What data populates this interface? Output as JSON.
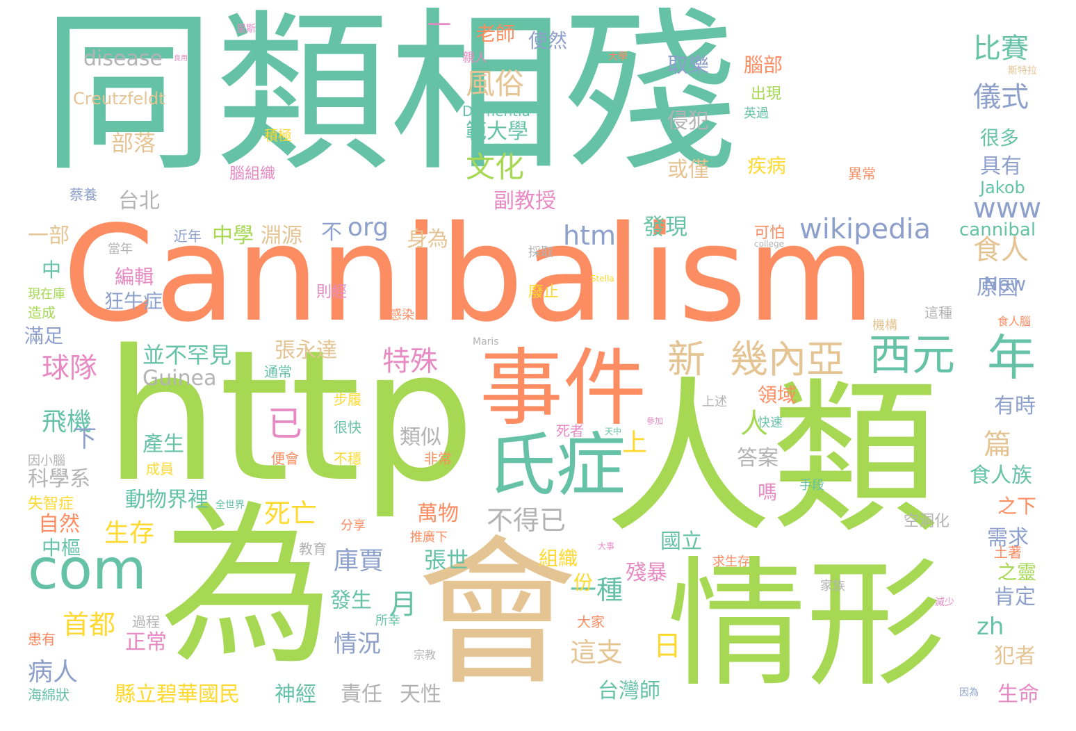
{
  "colors": {
    "teal": "#66c2a5",
    "orange": "#fc8d62",
    "slate": "#8da0cb",
    "pink": "#e78ac3",
    "green": "#a6d854",
    "yellow": "#ffd92f",
    "tan": "#e5c494",
    "gray": "#b3b3b3"
  },
  "words": [
    {
      "text": "同類相殘",
      "color": "teal"
    },
    {
      "text": "Cannibalism",
      "color": "orange"
    },
    {
      "text": "http",
      "color": "green"
    },
    {
      "text": "人類",
      "color": "green"
    },
    {
      "text": "為",
      "color": "green"
    },
    {
      "text": "會",
      "color": "tan"
    },
    {
      "text": "情形",
      "color": "green"
    },
    {
      "text": "事件",
      "color": "orange"
    },
    {
      "text": "氏症",
      "color": "teal"
    },
    {
      "text": "com",
      "color": "teal"
    },
    {
      "text": "西元",
      "color": "teal"
    },
    {
      "text": "年",
      "color": "teal"
    },
    {
      "text": "新",
      "color": "tan"
    },
    {
      "text": "幾內亞",
      "color": "tan"
    },
    {
      "text": "wikipedia",
      "color": "slate"
    },
    {
      "text": "文化",
      "color": "green"
    },
    {
      "text": "風俗",
      "color": "tan"
    },
    {
      "text": "比賽",
      "color": "teal"
    },
    {
      "text": "儀式",
      "color": "slate"
    },
    {
      "text": "www",
      "color": "slate"
    },
    {
      "text": "食人",
      "color": "tan"
    },
    {
      "text": "特殊",
      "color": "pink"
    },
    {
      "text": "球隊",
      "color": "pink"
    },
    {
      "text": "飛機",
      "color": "teal"
    },
    {
      "text": "生存",
      "color": "yellow"
    },
    {
      "text": "死亡",
      "color": "yellow"
    },
    {
      "text": "不得已",
      "color": "gray"
    },
    {
      "text": "首都",
      "color": "yellow"
    },
    {
      "text": "病人",
      "color": "slate"
    },
    {
      "text": "這支",
      "color": "tan"
    },
    {
      "text": "一種",
      "color": "teal"
    },
    {
      "text": "情況",
      "color": "slate"
    },
    {
      "text": "月",
      "color": "teal"
    },
    {
      "text": "日",
      "color": "yellow"
    },
    {
      "text": "庫賈",
      "color": "slate"
    },
    {
      "text": "htm",
      "color": "slate"
    },
    {
      "text": "org",
      "color": "slate"
    },
    {
      "text": "disease",
      "color": "gray"
    },
    {
      "text": "Creutzfeldt",
      "color": "tan"
    },
    {
      "text": "部落",
      "color": "tan"
    },
    {
      "text": "老師",
      "color": "orange"
    },
    {
      "text": "使然",
      "color": "slate"
    },
    {
      "text": "取樂",
      "color": "slate"
    },
    {
      "text": "侵犯",
      "color": "gray"
    },
    {
      "text": "或僅",
      "color": "tan"
    },
    {
      "text": "腦部",
      "color": "orange"
    },
    {
      "text": "出現",
      "color": "green"
    },
    {
      "text": "疾病",
      "color": "yellow"
    },
    {
      "text": "範大學",
      "color": "teal"
    },
    {
      "text": "Dementia",
      "color": "teal"
    },
    {
      "text": "副教授",
      "color": "pink"
    },
    {
      "text": "發現",
      "color": "teal"
    },
    {
      "text": "台北",
      "color": "gray"
    },
    {
      "text": "一部",
      "color": "tan"
    },
    {
      "text": "中學",
      "color": "green"
    },
    {
      "text": "淵源",
      "color": "tan"
    },
    {
      "text": "不",
      "color": "slate"
    },
    {
      "text": "身為",
      "color": "tan"
    },
    {
      "text": "編輯",
      "color": "pink"
    },
    {
      "text": "狂牛症",
      "color": "slate"
    },
    {
      "text": "滿足",
      "color": "slate"
    },
    {
      "text": "並不罕見",
      "color": "teal"
    },
    {
      "text": "張永達",
      "color": "tan"
    },
    {
      "text": "Guinea",
      "color": "gray"
    },
    {
      "text": "已",
      "color": "pink"
    },
    {
      "text": "人",
      "color": "green"
    },
    {
      "text": "領域",
      "color": "orange"
    },
    {
      "text": "篇",
      "color": "tan"
    },
    {
      "text": "食人族",
      "color": "teal"
    },
    {
      "text": "上",
      "color": "yellow"
    },
    {
      "text": "下",
      "color": "slate"
    },
    {
      "text": "產生",
      "color": "teal"
    },
    {
      "text": "類似",
      "color": "gray"
    },
    {
      "text": "答案",
      "color": "gray"
    },
    {
      "text": "嗎",
      "color": "pink"
    },
    {
      "text": "科學系",
      "color": "gray"
    },
    {
      "text": "動物界裡",
      "color": "teal"
    },
    {
      "text": "萬物",
      "color": "orange"
    },
    {
      "text": "自然",
      "color": "orange"
    },
    {
      "text": "中樞",
      "color": "teal"
    },
    {
      "text": "張世",
      "color": "teal"
    },
    {
      "text": "國立",
      "color": "teal"
    },
    {
      "text": "組織",
      "color": "yellow"
    },
    {
      "text": "份",
      "color": "yellow"
    },
    {
      "text": "殘暴",
      "color": "pink"
    },
    {
      "text": "發生",
      "color": "teal"
    },
    {
      "text": "正常",
      "color": "pink"
    },
    {
      "text": "縣立碧華國民",
      "color": "yellow"
    },
    {
      "text": "神經",
      "color": "teal"
    },
    {
      "text": "責任",
      "color": "gray"
    },
    {
      "text": "天性",
      "color": "gray"
    },
    {
      "text": "台灣師",
      "color": "teal"
    },
    {
      "text": "原因",
      "color": "slate"
    },
    {
      "text": "New",
      "color": "slate"
    },
    {
      "text": "cannibal",
      "color": "teal"
    },
    {
      "text": "Jakob",
      "color": "teal"
    },
    {
      "text": "具有",
      "color": "slate"
    },
    {
      "text": "很多",
      "color": "teal"
    },
    {
      "text": "有時",
      "color": "slate"
    },
    {
      "text": "之下",
      "color": "orange"
    },
    {
      "text": "需求",
      "color": "slate"
    },
    {
      "text": "之靈",
      "color": "green"
    },
    {
      "text": "肯定",
      "color": "slate"
    },
    {
      "text": "zh",
      "color": "teal"
    },
    {
      "text": "犯者",
      "color": "tan"
    },
    {
      "text": "生命",
      "color": "pink"
    },
    {
      "text": "中",
      "color": "teal"
    },
    {
      "text": "一",
      "color": "pink"
    },
    {
      "text": "空洞化",
      "color": "gray"
    },
    {
      "text": "可怕",
      "color": "orange"
    },
    {
      "text": "廢止",
      "color": "yellow"
    },
    {
      "text": "則經",
      "color": "pink"
    },
    {
      "text": "感染",
      "color": "orange"
    },
    {
      "text": "近年",
      "color": "slate"
    },
    {
      "text": "當年",
      "color": "gray"
    },
    {
      "text": "採取",
      "color": "gray"
    },
    {
      "text": "親人",
      "color": "pink"
    },
    {
      "text": "積極",
      "color": "yellow"
    },
    {
      "text": "腦組織",
      "color": "pink"
    },
    {
      "text": "蔡養",
      "color": "slate"
    },
    {
      "text": "異常",
      "color": "orange"
    },
    {
      "text": "很快",
      "color": "teal"
    },
    {
      "text": "便會",
      "color": "orange"
    },
    {
      "text": "不穩",
      "color": "yellow"
    },
    {
      "text": "非常",
      "color": "orange"
    },
    {
      "text": "成員",
      "color": "yellow"
    },
    {
      "text": "失智症",
      "color": "yellow"
    },
    {
      "text": "因小腦",
      "color": "gray"
    },
    {
      "text": "通常",
      "color": "teal"
    },
    {
      "text": "步履",
      "color": "yellow"
    },
    {
      "text": "這種",
      "color": "gray"
    },
    {
      "text": "上述",
      "color": "gray"
    },
    {
      "text": "快速",
      "color": "teal"
    },
    {
      "text": "死者",
      "color": "pink"
    },
    {
      "text": "手段",
      "color": "teal"
    },
    {
      "text": "分享",
      "color": "orange"
    },
    {
      "text": "推廣下",
      "color": "orange"
    },
    {
      "text": "教育",
      "color": "gray"
    },
    {
      "text": "求生存",
      "color": "orange"
    },
    {
      "text": "家族",
      "color": "gray"
    },
    {
      "text": "土著",
      "color": "orange"
    },
    {
      "text": "減少",
      "color": "pink"
    },
    {
      "text": "大家",
      "color": "orange"
    },
    {
      "text": "所幸",
      "color": "teal"
    },
    {
      "text": "宗教",
      "color": "gray"
    },
    {
      "text": "過程",
      "color": "gray"
    },
    {
      "text": "患有",
      "color": "orange"
    },
    {
      "text": "海綿狀",
      "color": "teal"
    },
    {
      "text": "因為",
      "color": "slate"
    },
    {
      "text": "造成",
      "color": "green"
    },
    {
      "text": "現在庫",
      "color": "green"
    },
    {
      "text": "機構",
      "color": "tan"
    },
    {
      "text": "食人腦",
      "color": "orange"
    },
    {
      "text": "英過",
      "color": "teal"
    },
    {
      "text": "斯特拉",
      "color": "tan"
    },
    {
      "text": "大學",
      "color": "orange"
    },
    {
      "text": "良用",
      "color": "pink"
    },
    {
      "text": "里斯",
      "color": "pink"
    },
    {
      "text": "Stella",
      "color": "yellow"
    },
    {
      "text": "college",
      "color": "gray"
    },
    {
      "text": "Maris",
      "color": "gray"
    },
    {
      "text": "全世界",
      "color": "teal"
    },
    {
      "text": "天中",
      "color": "teal"
    },
    {
      "text": "參加",
      "color": "pink"
    },
    {
      "text": "大事",
      "color": "pink"
    }
  ]
}
